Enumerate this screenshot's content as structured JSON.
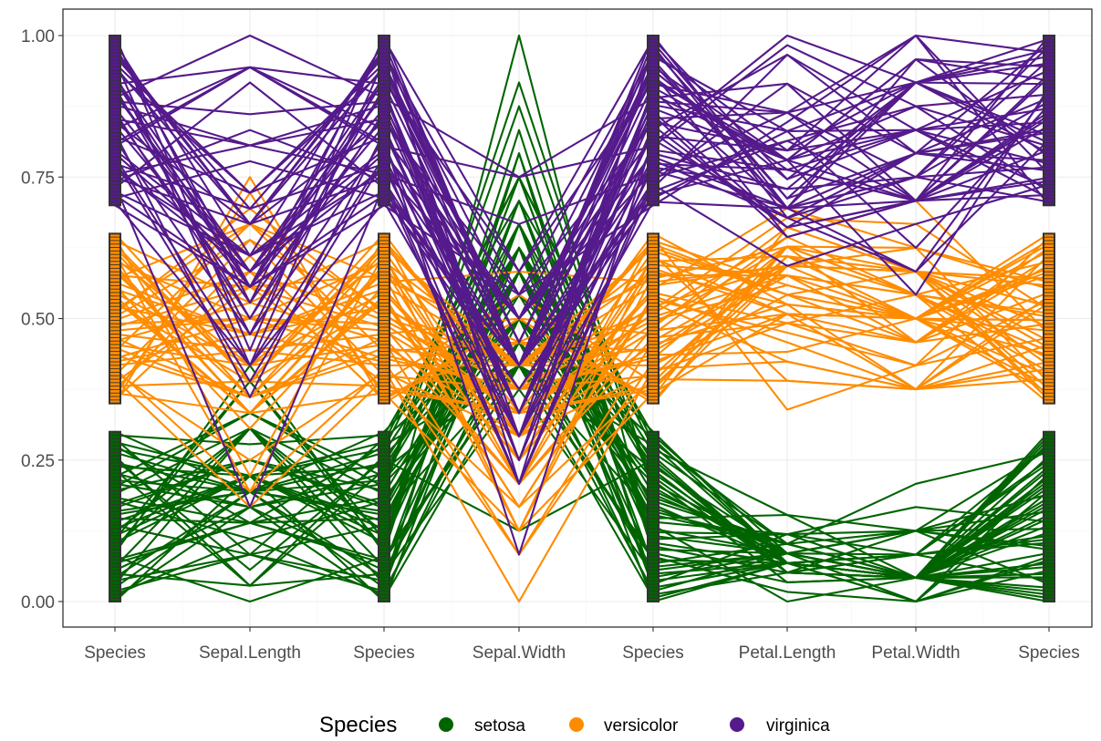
{
  "chart_data": {
    "type": "parallel-coordinates",
    "axes": [
      "Species",
      "Sepal.Length",
      "Species",
      "Sepal.Width",
      "Species",
      "Petal.Length",
      "Petal.Width",
      "Species"
    ],
    "y_ticks": [
      "0.00",
      "0.25",
      "0.50",
      "0.75",
      "1.00"
    ],
    "y_tick_values": [
      0,
      0.25,
      0.5,
      0.75,
      1
    ],
    "ylim": [
      0,
      1
    ],
    "grid": true,
    "legend": {
      "title": "Species",
      "position": "bottom",
      "entries": [
        {
          "name": "setosa",
          "color": "#006400"
        },
        {
          "name": "versicolor",
          "color": "#FF8C00"
        },
        {
          "name": "virginica",
          "color": "#551A8B"
        }
      ]
    },
    "species_band_ranges": {
      "setosa": [
        0.0,
        0.3
      ],
      "versicolor": [
        0.35,
        0.65
      ],
      "virginica": [
        0.7,
        1.0
      ]
    },
    "series": [
      {
        "name": "setosa",
        "color": "#006400",
        "sepal_length": [
          0.222,
          0.167,
          0.111,
          0.083,
          0.194,
          0.306,
          0.083,
          0.194,
          0.028,
          0.167,
          0.306,
          0.139,
          0.139,
          0.0,
          0.417,
          0.389,
          0.306,
          0.222,
          0.389,
          0.222,
          0.306,
          0.222,
          0.083,
          0.222,
          0.139,
          0.194,
          0.194,
          0.25,
          0.25,
          0.111,
          0.139,
          0.306,
          0.25,
          0.333,
          0.167,
          0.194,
          0.333,
          0.167,
          0.028,
          0.222,
          0.194,
          0.056,
          0.028,
          0.194,
          0.222,
          0.139,
          0.222,
          0.083,
          0.278,
          0.194
        ],
        "sepal_width": [
          0.625,
          0.417,
          0.5,
          0.458,
          0.667,
          0.792,
          0.583,
          0.583,
          0.375,
          0.458,
          0.708,
          0.583,
          0.417,
          0.417,
          0.833,
          1.0,
          0.792,
          0.625,
          0.75,
          0.75,
          0.583,
          0.708,
          0.667,
          0.542,
          0.583,
          0.417,
          0.583,
          0.625,
          0.583,
          0.5,
          0.458,
          0.583,
          0.875,
          0.917,
          0.458,
          0.5,
          0.625,
          0.667,
          0.417,
          0.583,
          0.625,
          0.125,
          0.5,
          0.625,
          0.75,
          0.417,
          0.75,
          0.5,
          0.708,
          0.542
        ],
        "petal_length": [
          0.068,
          0.068,
          0.051,
          0.085,
          0.068,
          0.119,
          0.068,
          0.085,
          0.068,
          0.085,
          0.085,
          0.102,
          0.068,
          0.017,
          0.034,
          0.085,
          0.051,
          0.068,
          0.119,
          0.085,
          0.119,
          0.085,
          0.0,
          0.119,
          0.153,
          0.102,
          0.102,
          0.085,
          0.068,
          0.102,
          0.102,
          0.085,
          0.085,
          0.068,
          0.085,
          0.034,
          0.051,
          0.068,
          0.051,
          0.085,
          0.051,
          0.051,
          0.051,
          0.102,
          0.153,
          0.068,
          0.102,
          0.068,
          0.085,
          0.068
        ],
        "petal_width": [
          0.042,
          0.042,
          0.042,
          0.042,
          0.042,
          0.125,
          0.083,
          0.042,
          0.042,
          0.0,
          0.042,
          0.042,
          0.0,
          0.0,
          0.042,
          0.125,
          0.125,
          0.083,
          0.083,
          0.083,
          0.042,
          0.125,
          0.042,
          0.167,
          0.042,
          0.042,
          0.125,
          0.042,
          0.042,
          0.042,
          0.042,
          0.125,
          0.0,
          0.042,
          0.042,
          0.042,
          0.042,
          0.0,
          0.042,
          0.042,
          0.083,
          0.083,
          0.042,
          0.208,
          0.125,
          0.083,
          0.042,
          0.042,
          0.042,
          0.042
        ]
      },
      {
        "name": "versicolor",
        "color": "#FF8C00",
        "sepal_length": [
          0.75,
          0.583,
          0.722,
          0.333,
          0.611,
          0.389,
          0.556,
          0.167,
          0.639,
          0.25,
          0.194,
          0.444,
          0.472,
          0.5,
          0.361,
          0.667,
          0.361,
          0.417,
          0.528,
          0.361,
          0.444,
          0.5,
          0.556,
          0.5,
          0.583,
          0.639,
          0.694,
          0.667,
          0.472,
          0.389,
          0.333,
          0.333,
          0.417,
          0.472,
          0.306,
          0.472,
          0.667,
          0.556,
          0.361,
          0.333,
          0.333,
          0.5,
          0.417,
          0.194,
          0.361,
          0.389,
          0.389,
          0.528,
          0.222,
          0.389
        ],
        "sepal_width": [
          0.5,
          0.5,
          0.458,
          0.125,
          0.333,
          0.333,
          0.542,
          0.167,
          0.375,
          0.292,
          0.0,
          0.417,
          0.083,
          0.375,
          0.375,
          0.458,
          0.417,
          0.292,
          0.083,
          0.208,
          0.5,
          0.333,
          0.208,
          0.333,
          0.375,
          0.417,
          0.333,
          0.417,
          0.375,
          0.25,
          0.167,
          0.167,
          0.292,
          0.292,
          0.417,
          0.583,
          0.458,
          0.125,
          0.417,
          0.208,
          0.25,
          0.417,
          0.25,
          0.125,
          0.292,
          0.417,
          0.375,
          0.375,
          0.208,
          0.333
        ],
        "petal_length": [
          0.627,
          0.593,
          0.661,
          0.508,
          0.61,
          0.593,
          0.627,
          0.39,
          0.61,
          0.492,
          0.424,
          0.542,
          0.508,
          0.627,
          0.441,
          0.576,
          0.593,
          0.525,
          0.593,
          0.492,
          0.644,
          0.508,
          0.661,
          0.627,
          0.559,
          0.576,
          0.644,
          0.678,
          0.593,
          0.424,
          0.475,
          0.458,
          0.492,
          0.695,
          0.593,
          0.593,
          0.627,
          0.576,
          0.525,
          0.508,
          0.576,
          0.61,
          0.508,
          0.39,
          0.542,
          0.542,
          0.542,
          0.559,
          0.339,
          0.525
        ],
        "petal_width": [
          0.542,
          0.583,
          0.583,
          0.5,
          0.583,
          0.5,
          0.625,
          0.375,
          0.5,
          0.542,
          0.375,
          0.583,
          0.375,
          0.542,
          0.5,
          0.542,
          0.583,
          0.375,
          0.583,
          0.417,
          0.708,
          0.5,
          0.583,
          0.458,
          0.5,
          0.542,
          0.542,
          0.667,
          0.583,
          0.375,
          0.417,
          0.375,
          0.458,
          0.625,
          0.583,
          0.625,
          0.583,
          0.5,
          0.5,
          0.5,
          0.458,
          0.542,
          0.458,
          0.375,
          0.5,
          0.458,
          0.5,
          0.5,
          0.417,
          0.5
        ]
      },
      {
        "name": "virginica",
        "color": "#551A8B",
        "sepal_length": [
          0.556,
          0.417,
          0.778,
          0.556,
          0.611,
          0.917,
          0.167,
          0.833,
          0.667,
          0.806,
          0.611,
          0.583,
          0.694,
          0.389,
          0.417,
          0.583,
          0.611,
          0.944,
          0.944,
          0.472,
          0.722,
          0.361,
          0.944,
          0.556,
          0.667,
          0.806,
          0.528,
          0.5,
          0.583,
          0.806,
          0.861,
          1.0,
          0.583,
          0.556,
          0.5,
          0.944,
          0.556,
          0.583,
          0.472,
          0.722,
          0.667,
          0.722,
          0.417,
          0.694,
          0.667,
          0.667,
          0.556,
          0.611,
          0.528,
          0.444
        ],
        "sepal_width": [
          0.542,
          0.292,
          0.417,
          0.375,
          0.417,
          0.417,
          0.208,
          0.375,
          0.208,
          0.667,
          0.5,
          0.292,
          0.417,
          0.208,
          0.333,
          0.5,
          0.417,
          0.75,
          0.25,
          0.083,
          0.5,
          0.333,
          0.333,
          0.292,
          0.542,
          0.5,
          0.333,
          0.417,
          0.333,
          0.417,
          0.333,
          0.75,
          0.333,
          0.333,
          0.25,
          0.417,
          0.583,
          0.458,
          0.417,
          0.458,
          0.458,
          0.458,
          0.292,
          0.5,
          0.542,
          0.417,
          0.208,
          0.417,
          0.583,
          0.417
        ],
        "petal_length": [
          0.847,
          0.695,
          0.831,
          0.78,
          0.814,
          0.966,
          0.593,
          0.915,
          0.814,
          0.864,
          0.695,
          0.729,
          0.763,
          0.678,
          0.695,
          0.729,
          0.763,
          0.983,
          1.0,
          0.678,
          0.797,
          0.661,
          0.966,
          0.661,
          0.797,
          0.864,
          0.644,
          0.661,
          0.78,
          0.831,
          0.864,
          0.915,
          0.78,
          0.695,
          0.78,
          0.864,
          0.78,
          0.763,
          0.644,
          0.746,
          0.78,
          0.695,
          0.695,
          0.831,
          0.797,
          0.712,
          0.678,
          0.712,
          0.746,
          0.695
        ],
        "petal_width": [
          1.0,
          0.75,
          0.833,
          0.708,
          0.875,
          0.833,
          0.667,
          0.708,
          0.708,
          1.0,
          0.792,
          0.75,
          0.833,
          0.792,
          0.958,
          0.917,
          0.708,
          0.875,
          0.917,
          0.583,
          0.917,
          0.792,
          0.792,
          0.708,
          0.833,
          0.708,
          0.708,
          0.708,
          0.833,
          0.625,
          0.75,
          0.792,
          0.875,
          0.583,
          0.542,
          0.917,
          0.958,
          0.708,
          0.708,
          0.833,
          0.958,
          0.917,
          0.75,
          0.917,
          1.0,
          0.917,
          0.75,
          0.792,
          0.917,
          0.708
        ]
      }
    ]
  }
}
